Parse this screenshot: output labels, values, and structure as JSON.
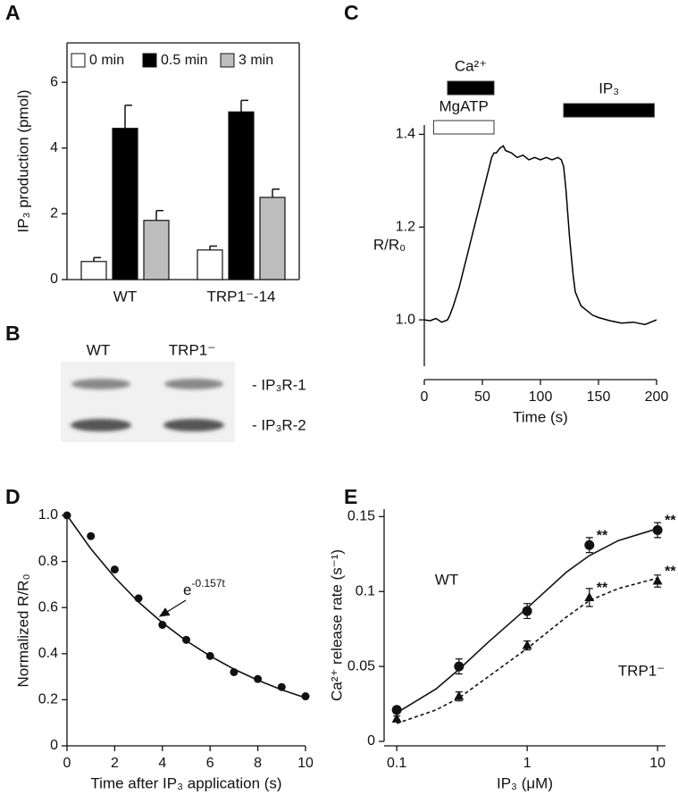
{
  "chart_data": [
    {
      "type": "bar",
      "panel": "A",
      "y_label": "IP₃ production (pmol)",
      "categories": [
        "WT",
        "TRP1⁻-14"
      ],
      "series": [
        {
          "name": "0 min",
          "color": "#ffffff",
          "values": [
            0.55,
            0.9
          ],
          "errors": [
            0.12,
            0.12
          ]
        },
        {
          "name": "0.5 min",
          "color": "#000000",
          "values": [
            4.6,
            5.1
          ],
          "errors": [
            0.7,
            0.35
          ]
        },
        {
          "name": "3 min",
          "color": "#bdbdbd",
          "values": [
            1.8,
            2.5
          ],
          "errors": [
            0.3,
            0.25
          ]
        }
      ],
      "ylim": [
        0,
        7.2
      ],
      "yticks": [
        0,
        2,
        4,
        6
      ]
    },
    {
      "type": "line",
      "panel": "C",
      "x_label": "Time (s)",
      "y_label": "R/R₀",
      "x": [
        0,
        5,
        10,
        15,
        20,
        22,
        25,
        30,
        35,
        40,
        45,
        50,
        55,
        58,
        60,
        62,
        65,
        68,
        70,
        75,
        80,
        85,
        90,
        95,
        100,
        105,
        110,
        115,
        118,
        120,
        122,
        125,
        128,
        130,
        135,
        140,
        145,
        150,
        160,
        170,
        180,
        190,
        200
      ],
      "y": [
        1.0,
        0.998,
        1.003,
        0.995,
        1.0,
        1.01,
        1.03,
        1.07,
        1.12,
        1.17,
        1.22,
        1.27,
        1.32,
        1.35,
        1.36,
        1.36,
        1.37,
        1.375,
        1.365,
        1.36,
        1.35,
        1.355,
        1.345,
        1.35,
        1.345,
        1.35,
        1.345,
        1.35,
        1.345,
        1.33,
        1.28,
        1.18,
        1.1,
        1.06,
        1.03,
        1.02,
        1.01,
        1.005,
        0.998,
        0.993,
        0.995,
        0.99,
        1.0
      ],
      "color": "#000000",
      "bars": [
        {
          "label": "Ca²⁺",
          "start": 20,
          "end": 60,
          "color": "#000000"
        },
        {
          "label": "MgATP",
          "start": 8,
          "end": 60,
          "color": "#ffffff"
        },
        {
          "label": "IP₃",
          "start": 120,
          "end": 198,
          "color": "#000000"
        }
      ],
      "xlim": [
        0,
        200
      ],
      "xticks": [
        0,
        50,
        100,
        150,
        200
      ],
      "ylim": [
        0.9,
        1.42
      ],
      "yticks": [
        {
          "value": 1,
          "label": "1.0"
        },
        1.2,
        1.4
      ]
    },
    {
      "type": "scatter",
      "panel": "D",
      "x_label": "Time after IP₃ application (s)",
      "y_label": "Normalized R/R₀",
      "x": [
        0,
        1,
        2,
        3,
        4,
        5,
        6,
        7,
        8,
        9,
        10
      ],
      "y": [
        1.0,
        0.91,
        0.765,
        0.64,
        0.525,
        0.46,
        0.39,
        0.32,
        0.29,
        0.255,
        0.215
      ],
      "fit": {
        "x": [
          0,
          1,
          2,
          3,
          4,
          5,
          6,
          7,
          8,
          9,
          10
        ],
        "y": [
          1,
          0.855,
          0.731,
          0.624,
          0.534,
          0.456,
          0.39,
          0.333,
          0.285,
          0.243,
          0.208
        ]
      },
      "annotation": {
        "text": "e",
        "superscript": "-0.157t"
      },
      "xlim": [
        0,
        10
      ],
      "xticks": [
        0,
        2,
        4,
        6,
        8,
        10
      ],
      "ylim": [
        0,
        1
      ],
      "yticks": [
        0,
        0.2,
        0.4,
        0.6,
        0.8,
        {
          "value": 1,
          "label": "1.0"
        }
      ]
    },
    {
      "type": "scatter-errors",
      "panel": "E",
      "x_label": "IP₃ (μM)",
      "y_label": "Ca²⁺ release rate (s⁻¹)",
      "xlog": true,
      "series": [
        {
          "name": "WT",
          "marker": "circle",
          "dashed": false,
          "x": [
            0.1,
            0.3,
            1,
            3,
            10
          ],
          "y": [
            0.021,
            0.05,
            0.087,
            0.131,
            0.141
          ],
          "errors": [
            0.002,
            0.005,
            0.005,
            0.005,
            0.005
          ],
          "fit": {
            "x": [
              0.1,
              0.2,
              0.3,
              0.5,
              1,
              2,
              3,
              5,
              10
            ],
            "y": [
              0.019,
              0.035,
              0.048,
              0.066,
              0.089,
              0.113,
              0.124,
              0.134,
              0.142
            ]
          },
          "annotations": [
            {
              "x": 3,
              "text": "**"
            },
            {
              "x": 10,
              "text": "**"
            }
          ]
        },
        {
          "name": "TRP1⁻",
          "marker": "triangle",
          "dashed": true,
          "x": [
            0.1,
            0.3,
            1,
            3,
            10
          ],
          "y": [
            0.015,
            0.03,
            0.064,
            0.096,
            0.107
          ],
          "errors": [
            0.002,
            0.003,
            0.003,
            0.006,
            0.004
          ],
          "fit": {
            "x": [
              0.1,
              0.2,
              0.3,
              0.5,
              1,
              2,
              3,
              5,
              10
            ],
            "y": [
              0.012,
              0.021,
              0.029,
              0.043,
              0.062,
              0.083,
              0.094,
              0.102,
              0.109
            ]
          },
          "annotations": [
            {
              "x": 3,
              "text": "**"
            },
            {
              "x": 10,
              "text": "**"
            }
          ]
        }
      ],
      "xlim": [
        0.08,
        11.5
      ],
      "xticks": [
        0.1,
        1,
        10
      ],
      "ylim": [
        0,
        0.155
      ],
      "yticks": [
        0,
        0.05,
        0.1,
        0.15
      ]
    }
  ],
  "blot": {
    "panel": "B",
    "lanes": [
      "WT",
      "TRP1⁻"
    ],
    "bands": [
      "- IP₃R-1",
      "- IP₃R-2"
    ]
  }
}
